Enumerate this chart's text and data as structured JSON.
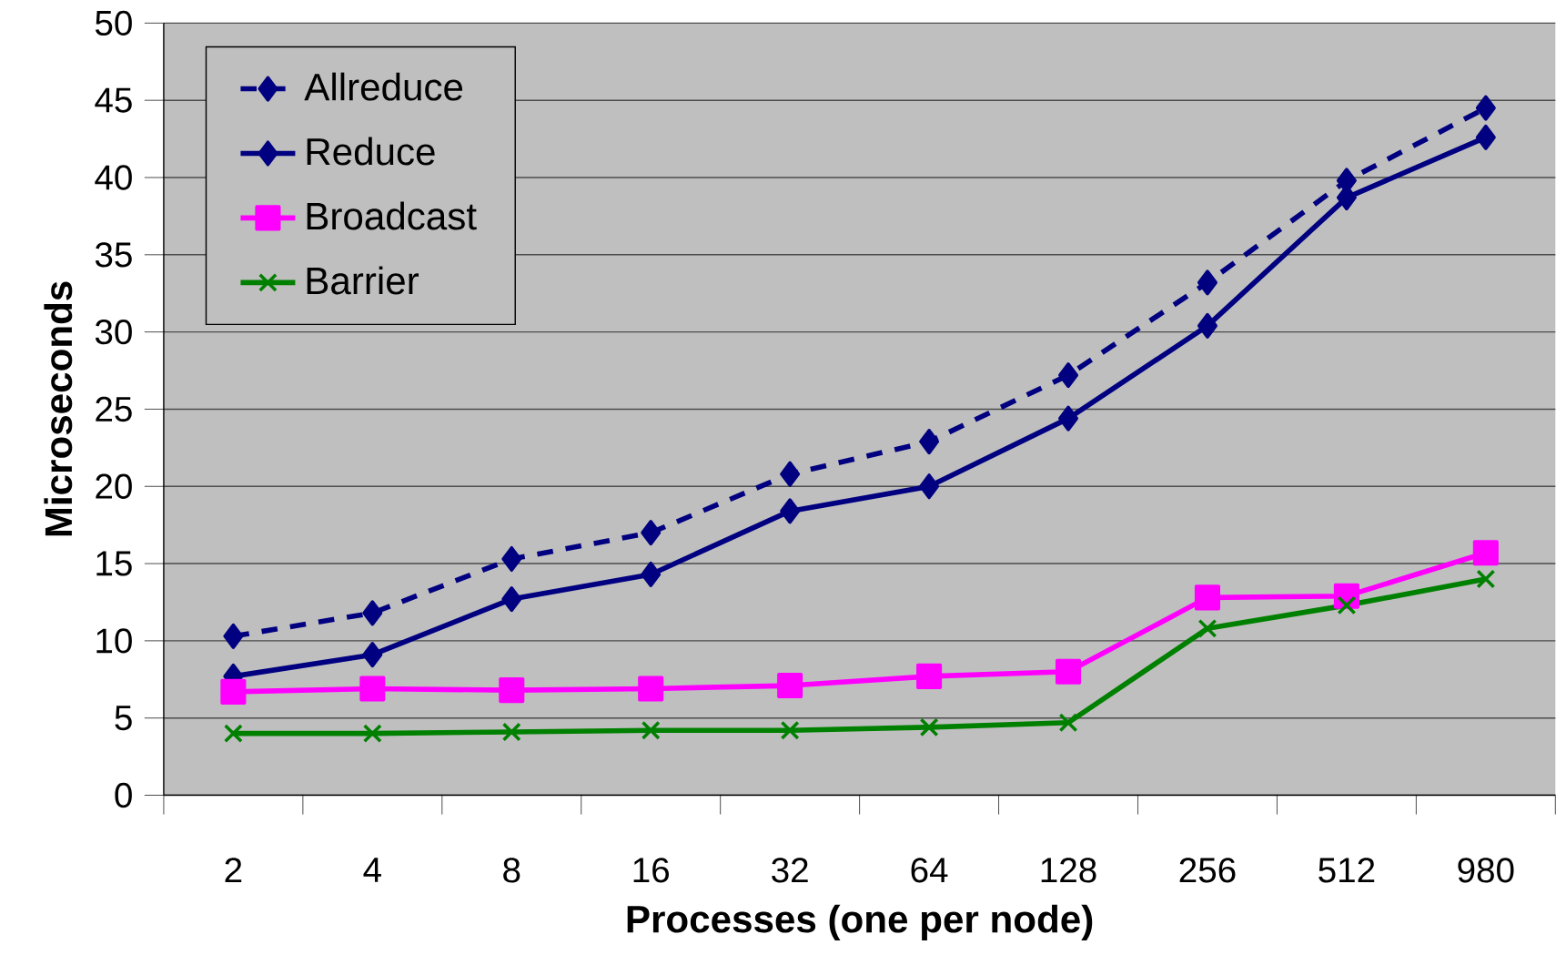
{
  "chart_data": {
    "type": "line",
    "xlabel": "Processes (one per node)",
    "ylabel": "Microseconds",
    "categories": [
      "2",
      "4",
      "8",
      "16",
      "32",
      "64",
      "128",
      "256",
      "512",
      "980"
    ],
    "series": [
      {
        "name": "Allreduce",
        "color": "#000080",
        "marker": "diamond",
        "line_style": "dashed",
        "values": [
          10.3,
          11.8,
          15.3,
          17.0,
          20.8,
          22.9,
          27.2,
          33.2,
          39.8,
          44.5
        ]
      },
      {
        "name": "Reduce",
        "color": "#000080",
        "marker": "diamond",
        "line_style": "solid",
        "values": [
          7.7,
          9.1,
          12.7,
          14.3,
          18.4,
          20.0,
          24.4,
          30.4,
          38.7,
          42.6
        ]
      },
      {
        "name": "Broadcast",
        "color": "#ff00ff",
        "marker": "square",
        "line_style": "solid",
        "values": [
          6.7,
          6.9,
          6.8,
          6.9,
          7.1,
          7.7,
          8.0,
          12.8,
          12.9,
          15.7
        ]
      },
      {
        "name": "Barrier",
        "color": "#008000",
        "marker": "cross",
        "line_style": "solid",
        "values": [
          4.0,
          4.0,
          4.1,
          4.2,
          4.2,
          4.4,
          4.7,
          10.8,
          12.3,
          14.0
        ]
      }
    ],
    "ylim": [
      0,
      50
    ],
    "yticks": [
      0,
      5,
      10,
      15,
      20,
      25,
      30,
      35,
      40,
      45,
      50
    ],
    "grid": "y",
    "legend": "top left"
  }
}
